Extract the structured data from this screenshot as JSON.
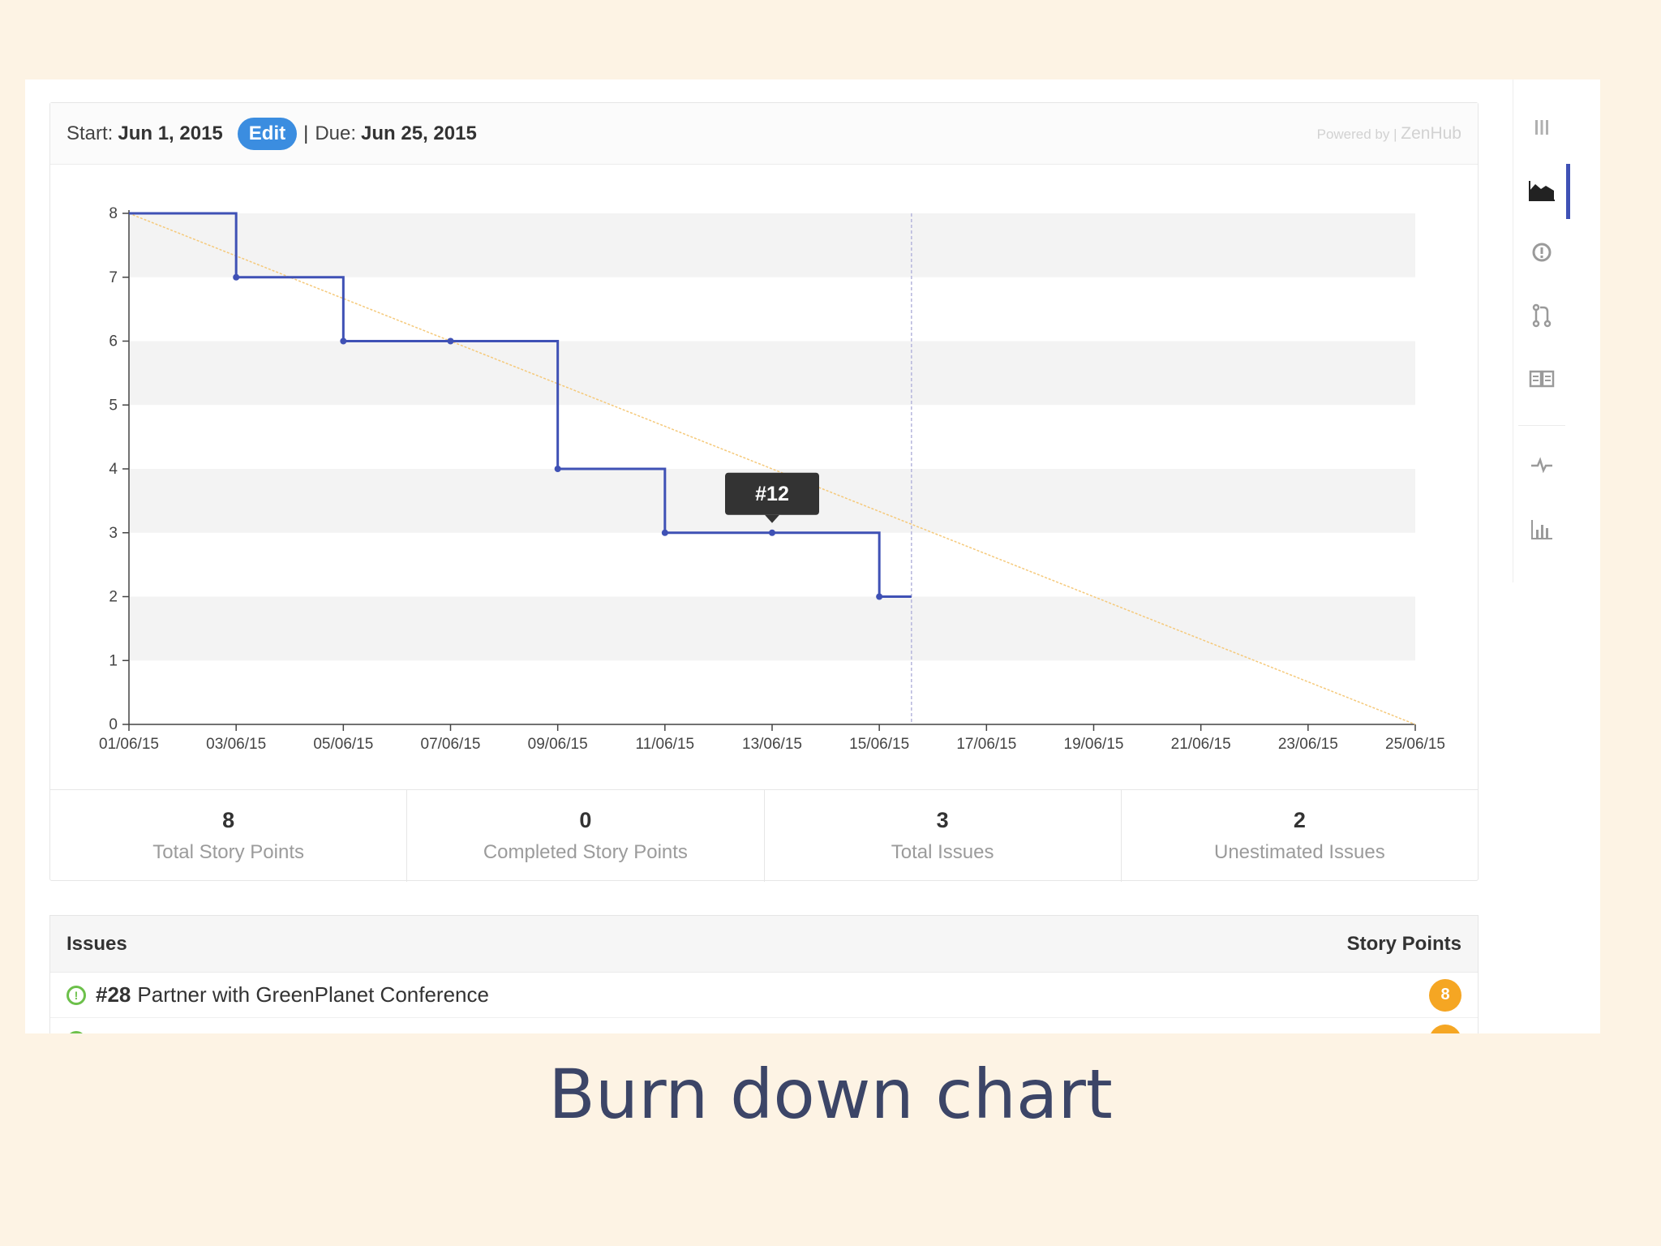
{
  "header": {
    "start_label": "Start:",
    "start_date": "Jun 1, 2015",
    "edit_label": "Edit",
    "separator": "|",
    "due_label": "Due:",
    "due_date": "Jun 25, 2015",
    "powered_by": "Powered by",
    "brand_sep": "|",
    "brand": "ZenHub"
  },
  "chart_data": {
    "type": "line",
    "title": "",
    "xlabel": "",
    "ylabel": "",
    "x_ticks": [
      "01/06/15",
      "03/06/15",
      "05/06/15",
      "07/06/15",
      "09/06/15",
      "11/06/15",
      "13/06/15",
      "15/06/15",
      "17/06/15",
      "19/06/15",
      "21/06/15",
      "23/06/15",
      "25/06/15"
    ],
    "y_ticks": [
      0,
      1,
      2,
      3,
      4,
      5,
      6,
      7,
      8
    ],
    "ylim": [
      0,
      8
    ],
    "xlim": [
      "01/06/15",
      "25/06/15"
    ],
    "grid": "horizontal bands",
    "today_marker": "15/06/15 + 0.6 day",
    "series": [
      {
        "style": "step",
        "color": "#3f51b5",
        "points": [
          {
            "x": "01/06/15",
            "y": 8
          },
          {
            "x": "03/06/15",
            "y": 7
          },
          {
            "x": "05/06/15",
            "y": 6
          },
          {
            "x": "07/06/15",
            "y": 6
          },
          {
            "x": "09/06/15",
            "y": 4
          },
          {
            "x": "11/06/15",
            "y": 3
          },
          {
            "x": "13/06/15",
            "y": 3
          },
          {
            "x": "15/06/15",
            "y": 2
          }
        ]
      },
      {
        "style": "ideal",
        "color": "#f5c97a",
        "points": [
          {
            "x": "01/06/15",
            "y": 8
          },
          {
            "x": "25/06/15",
            "y": 0
          }
        ]
      }
    ],
    "tooltip": {
      "label": "#12",
      "x": "13/06/15",
      "y": 3
    }
  },
  "stats": [
    {
      "value": "8",
      "label": "Total Story Points"
    },
    {
      "value": "0",
      "label": "Completed Story Points"
    },
    {
      "value": "3",
      "label": "Total Issues"
    },
    {
      "value": "2",
      "label": "Unestimated Issues"
    }
  ],
  "issues": {
    "col_issues": "Issues",
    "col_points": "Story Points",
    "rows": [
      {
        "number": "#28",
        "title": "Partner with GreenPlanet Conference",
        "points": "8"
      }
    ]
  },
  "sidebar": {
    "items": [
      "board-icon",
      "burndown-icon",
      "issues-icon",
      "pull-request-icon",
      "wiki-icon",
      "pulse-icon",
      "graphs-icon"
    ],
    "active": "burndown-icon"
  },
  "caption": "Burn down chart",
  "colors": {
    "accent": "#3f51b5",
    "ideal": "#f5c97a",
    "edit": "#3b8de0",
    "badge": "#f5a623",
    "open_issue": "#6cc04a",
    "background": "#fdf3e4"
  }
}
